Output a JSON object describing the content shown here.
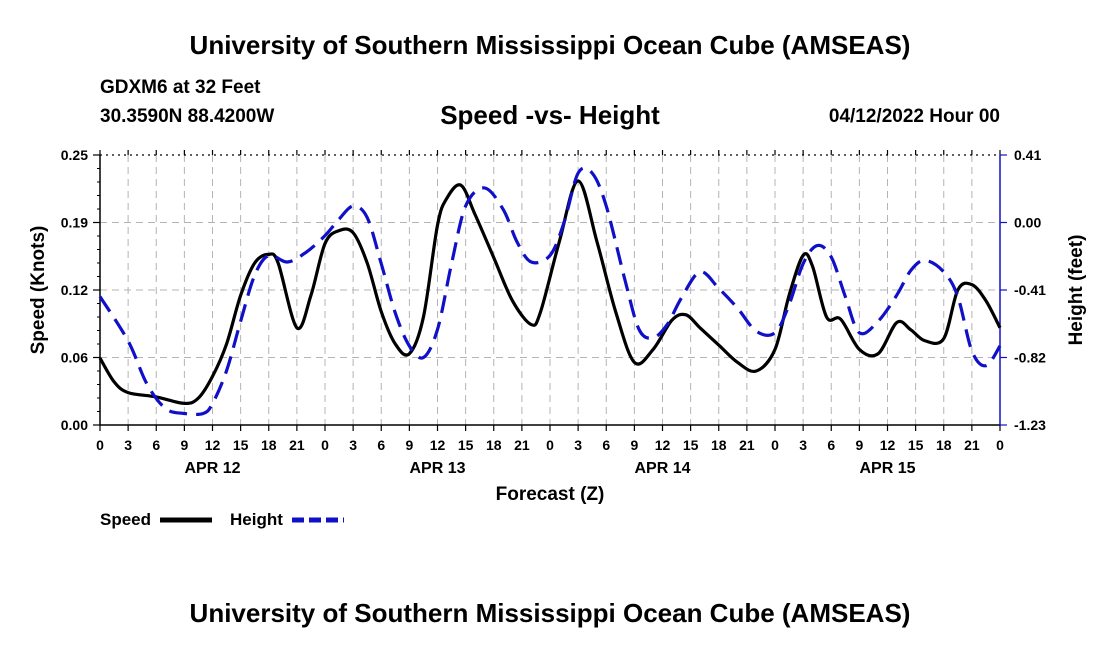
{
  "header": {
    "title": "University of Southern Mississippi Ocean Cube (AMSEAS)",
    "station": "GDXM6 at 32 Feet",
    "coordinates": "30.3590N  88.4200W",
    "chart_title": "Speed -vs- Height",
    "run_date": "04/12/2022 Hour 00"
  },
  "footer": {
    "title": "University of Southern Mississippi Ocean Cube (AMSEAS)"
  },
  "colors": {
    "speed": "#000000",
    "height": "#1010c8",
    "grid": "#b4b4b4"
  },
  "chart_data": {
    "type": "line",
    "title": "Speed -vs- Height",
    "xlabel": "Forecast (Z)",
    "ylabel": "Speed (Knots)",
    "y2label": "Height (feet)",
    "x_range_hours": [
      0,
      96
    ],
    "x_tick_labels": [
      "0",
      "3",
      "6",
      "9",
      "12",
      "15",
      "18",
      "21",
      "0",
      "3",
      "6",
      "9",
      "12",
      "15",
      "18",
      "21",
      "0",
      "3",
      "6",
      "9",
      "12",
      "15",
      "18",
      "21",
      "0",
      "3",
      "6",
      "9",
      "12",
      "15",
      "18",
      "21",
      "0"
    ],
    "day_labels": [
      {
        "hour": 12,
        "label": "APR 12"
      },
      {
        "hour": 36,
        "label": "APR 13"
      },
      {
        "hour": 60,
        "label": "APR 14"
      },
      {
        "hour": 84,
        "label": "APR 15"
      }
    ],
    "ylim": [
      0.0,
      0.25
    ],
    "y_tick_labels": [
      "0.00",
      "0.06",
      "0.12",
      "0.19",
      "0.25"
    ],
    "y2lim": [
      -1.23,
      0.41
    ],
    "y2_tick_labels": [
      "-1.23",
      "-0.82",
      "-0.41",
      "0.00",
      "0.41"
    ],
    "legend": [
      {
        "name": "Speed",
        "style": "solid"
      },
      {
        "name": "Height",
        "style": "dashed"
      }
    ],
    "series": [
      {
        "name": "Speed",
        "axis": "left",
        "style": "solid",
        "x": [
          0,
          1.5,
          3,
          6,
          9,
          10.5,
          12,
          13.5,
          15,
          16.5,
          18,
          19,
          21,
          22.5,
          24,
          25.5,
          27,
          28.5,
          30,
          31.5,
          33,
          34.5,
          36,
          37,
          38.5,
          40,
          42,
          44,
          46,
          47,
          49,
          51,
          53,
          55,
          57,
          59,
          61,
          62.5,
          64,
          66,
          68,
          70,
          72,
          73.5,
          75,
          76,
          77.5,
          79,
          81,
          83,
          85,
          86.5,
          88,
          90,
          91.5,
          93,
          94.5,
          96
        ],
        "values": [
          0.062,
          0.04,
          0.03,
          0.026,
          0.02,
          0.025,
          0.045,
          0.075,
          0.12,
          0.15,
          0.158,
          0.15,
          0.09,
          0.12,
          0.168,
          0.18,
          0.178,
          0.15,
          0.105,
          0.075,
          0.066,
          0.1,
          0.185,
          0.21,
          0.222,
          0.195,
          0.155,
          0.115,
          0.093,
          0.105,
          0.17,
          0.226,
          0.17,
          0.105,
          0.058,
          0.07,
          0.097,
          0.102,
          0.09,
          0.074,
          0.058,
          0.05,
          0.07,
          0.12,
          0.157,
          0.147,
          0.1,
          0.098,
          0.07,
          0.066,
          0.095,
          0.088,
          0.078,
          0.08,
          0.125,
          0.13,
          0.115,
          0.09
        ]
      },
      {
        "name": "Height",
        "axis": "right",
        "style": "dashed",
        "x": [
          0,
          3,
          5,
          7,
          9,
          11,
          12,
          13.5,
          15,
          16.5,
          18,
          20,
          22,
          24,
          25.5,
          27,
          28.5,
          30,
          31.5,
          33,
          34.5,
          36,
          37.5,
          39,
          41,
          43,
          44.5,
          46,
          48,
          49.5,
          51,
          52.5,
          54,
          56,
          57.5,
          59,
          60.5,
          62,
          64,
          66,
          68,
          70,
          72,
          73.5,
          75,
          76.5,
          78,
          79.5,
          81,
          83,
          85,
          86.5,
          88,
          90,
          91.5,
          93,
          94.5,
          96
        ],
        "values": [
          -0.45,
          -0.72,
          -0.98,
          -1.13,
          -1.16,
          -1.16,
          -1.1,
          -0.9,
          -0.6,
          -0.32,
          -0.2,
          -0.24,
          -0.18,
          -0.08,
          0.02,
          0.1,
          0.03,
          -0.25,
          -0.55,
          -0.75,
          -0.82,
          -0.65,
          -0.25,
          0.1,
          0.21,
          0.08,
          -0.12,
          -0.24,
          -0.2,
          0.0,
          0.3,
          0.3,
          0.1,
          -0.35,
          -0.65,
          -0.7,
          -0.62,
          -0.46,
          -0.3,
          -0.4,
          -0.52,
          -0.66,
          -0.67,
          -0.5,
          -0.25,
          -0.14,
          -0.21,
          -0.45,
          -0.67,
          -0.6,
          -0.44,
          -0.29,
          -0.23,
          -0.3,
          -0.45,
          -0.78,
          -0.87,
          -0.75
        ]
      }
    ]
  }
}
